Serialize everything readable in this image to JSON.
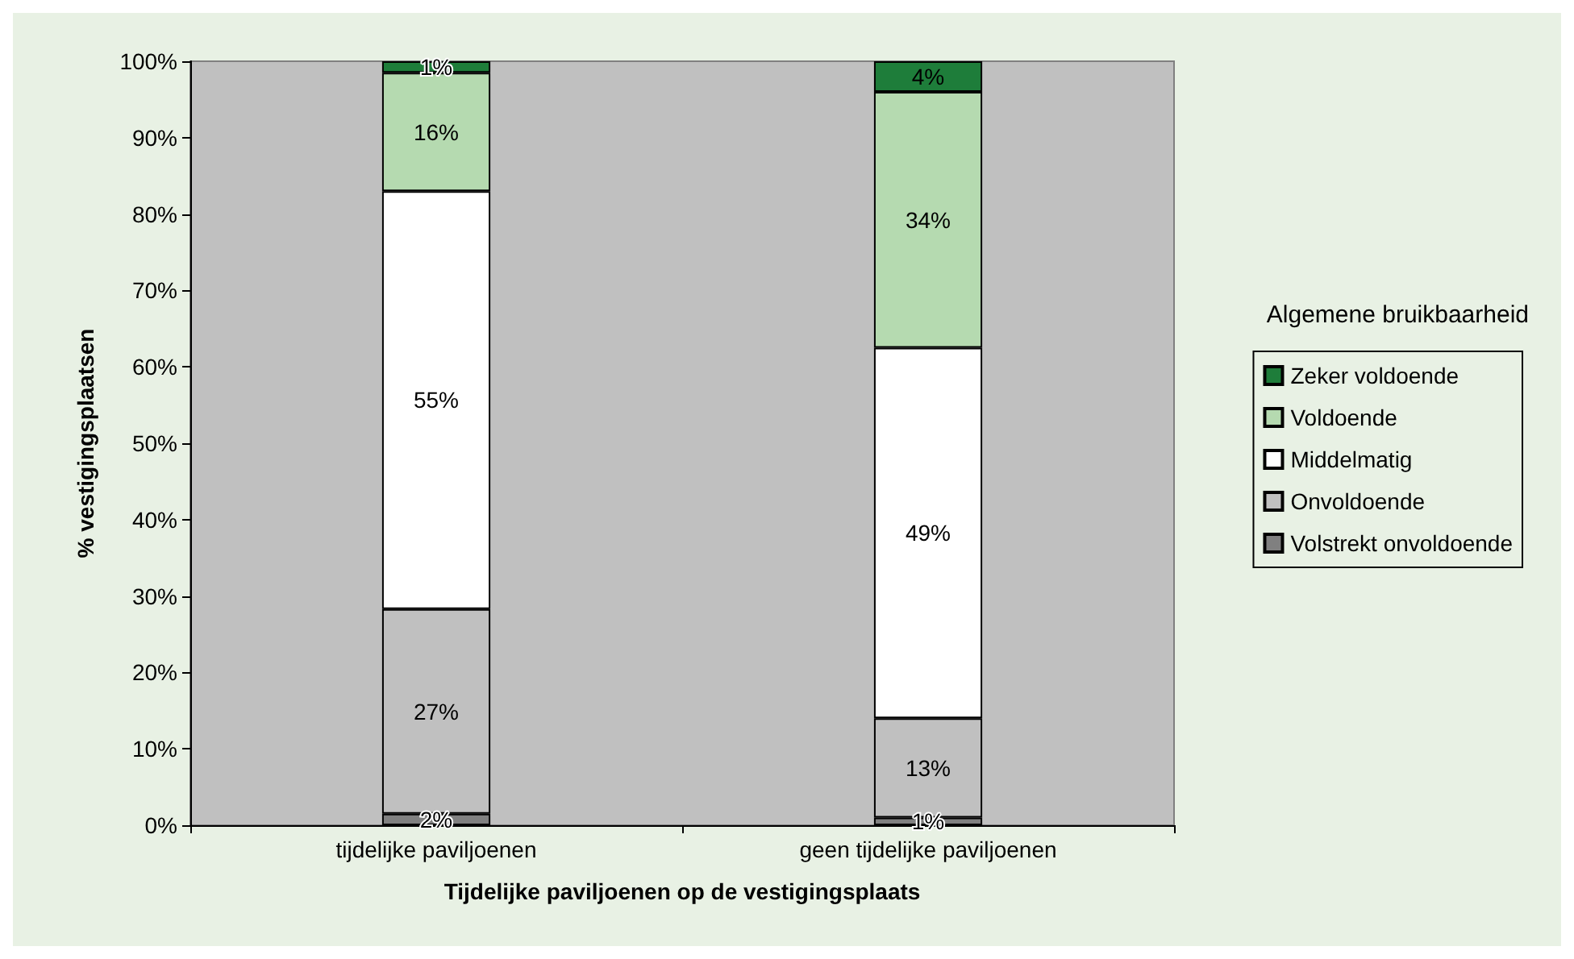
{
  "chart_data": {
    "type": "bar",
    "stacked": true,
    "xlabel": "Tijdelijke paviljoenen op de vestigingsplaats",
    "ylabel": "% vestigingsplaatsen",
    "legend_title": "Algemene bruikbaarheid",
    "legend": "right",
    "categories": [
      "tijdelijke paviljoenen",
      "geen tijdelijke paviljoenen"
    ],
    "ylim": [
      0,
      100
    ],
    "yticks": [
      {
        "value": 0,
        "label": "0%"
      },
      {
        "value": 10,
        "label": "10%"
      },
      {
        "value": 20,
        "label": "20%"
      },
      {
        "value": 30,
        "label": "30%"
      },
      {
        "value": 40,
        "label": "40%"
      },
      {
        "value": 50,
        "label": "50%"
      },
      {
        "value": 60,
        "label": "60%"
      },
      {
        "value": 70,
        "label": "70%"
      },
      {
        "value": 80,
        "label": "80%"
      },
      {
        "value": 90,
        "label": "90%"
      },
      {
        "value": 100,
        "label": "100%"
      }
    ],
    "series": [
      {
        "name": "Volstrekt onvoldoende",
        "color": "#808080",
        "values": [
          1.5,
          1
        ],
        "value_labels": [
          "2%",
          "1%"
        ]
      },
      {
        "name": "Onvoldoende",
        "color": "#c0c0c0",
        "values": [
          26.8,
          13
        ],
        "value_labels": [
          "27%",
          "13%"
        ]
      },
      {
        "name": "Middelmatig",
        "color": "#ffffff",
        "values": [
          54.7,
          48.5
        ],
        "value_labels": [
          "55%",
          "49%"
        ]
      },
      {
        "name": "Voldoende",
        "color": "#b5dab0",
        "values": [
          15.5,
          33.5
        ],
        "value_labels": [
          "16%",
          "34%"
        ]
      },
      {
        "name": "Zeker voldoende",
        "color": "#1e7d3a",
        "values": [
          1.5,
          4
        ],
        "value_labels": [
          "1%",
          "4%"
        ]
      }
    ]
  }
}
